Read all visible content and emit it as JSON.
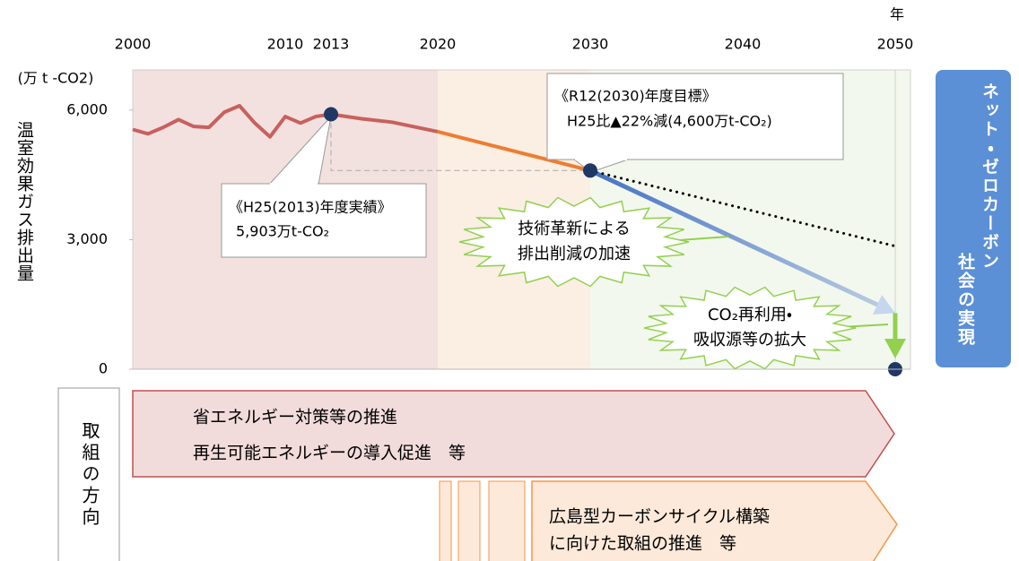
{
  "chart_data": {
    "type": "line",
    "x_unit_label": "年",
    "y_unit_label": "(万 t -CO2)",
    "y_label": "温室効果ガス排出量",
    "xlim": [
      2000,
      2051
    ],
    "xticks": [
      2000,
      2010,
      2013,
      2020,
      2030,
      2040,
      2050
    ],
    "ylim": [
      0,
      6930
    ],
    "yticks": [
      {
        "value": 6000,
        "label": "6,000"
      },
      {
        "value": 3000,
        "label": "3,000"
      },
      {
        "value": 0,
        "label": "0"
      }
    ],
    "series": [
      {
        "color": "#c9605d",
        "x": [
          2000,
          2001,
          2002,
          2003,
          2004,
          2005,
          2006,
          2007,
          2008,
          2009,
          2010,
          2011,
          2012,
          2013,
          2015,
          2017,
          2020
        ],
        "values": [
          5550,
          5450,
          5600,
          5780,
          5620,
          5600,
          5950,
          6100,
          5700,
          5380,
          5850,
          5700,
          5850,
          5903,
          5800,
          5720,
          5500
        ]
      },
      {
        "color": "#ed7d31",
        "x": [
          2020,
          2030
        ],
        "values": [
          5500,
          4600
        ]
      },
      {
        "color": "#4472c4",
        "x": [
          2030,
          2050
        ],
        "values": [
          4600,
          1300
        ],
        "arrow": true,
        "fade": true
      },
      {
        "color": "#000000",
        "x": [
          2030,
          2050
        ],
        "values": [
          4600,
          2850
        ],
        "dotted": true
      },
      {
        "color": "#92d050",
        "x": [
          2050,
          2050
        ],
        "values": [
          1300,
          250
        ],
        "arrow": true
      }
    ],
    "points": {
      "color": "#1f3864",
      "x": [
        2013,
        2030,
        2050
      ],
      "values": [
        5903,
        4600,
        0
      ]
    },
    "band_colors": [
      "#f2e1df",
      "#fbeee3",
      "#f3f8ee"
    ],
    "annotations": [
      [
        "《H25(2013)年度実績》",
        "5,903万t-CO₂"
      ],
      [
        "《R12(2030)年度目標》",
        "H25比▲22%減(4,600万t-CO₂)"
      ],
      [
        "技術革新による",
        "排出削減の加速"
      ],
      [
        "CO₂再利用・",
        "吸収源等の拡大"
      ]
    ]
  },
  "goal": [
    "ネット・ゼロカーボン",
    "社会の実現"
  ],
  "measures": {
    "heading": "取組の方向",
    "items": [
      [
        "省エネルギー対策等の推進",
        "再生可能エネルギーの導入促進　等"
      ],
      [
        "広島型カーボンサイクル構築",
        "に向けた取組の推進　等"
      ]
    ]
  }
}
